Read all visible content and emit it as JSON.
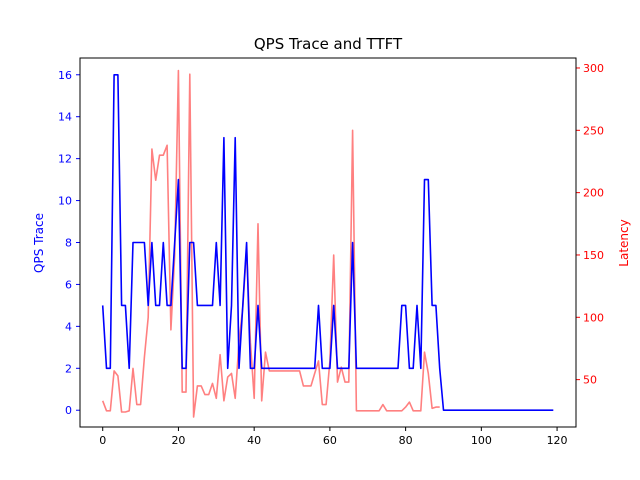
{
  "chart_data": {
    "type": "line",
    "title": "QPS Trace and TTFT",
    "xlabel": "",
    "ylabel": "QPS Trace",
    "y2label": "Latency",
    "xlim": [
      -6,
      125
    ],
    "ylim": [
      -0.8,
      16.8
    ],
    "y2lim": [
      12,
      308
    ],
    "x_ticks": [
      0,
      20,
      40,
      60,
      80,
      100,
      120
    ],
    "y_ticks": [
      0,
      2,
      4,
      6,
      8,
      10,
      12,
      14,
      16
    ],
    "y2_ticks": [
      50,
      100,
      150,
      200,
      250,
      300
    ],
    "grid": false,
    "colors": {
      "left_axis": "#0000ff",
      "right_axis": "#ff0000",
      "axes": "#000000"
    },
    "series": [
      {
        "axis": "left",
        "color": "#0000ff",
        "x": [
          0,
          1,
          2,
          3,
          4,
          5,
          6,
          7,
          8,
          9,
          10,
          11,
          12,
          13,
          14,
          15,
          16,
          17,
          18,
          19,
          20,
          21,
          22,
          23,
          24,
          25,
          26,
          27,
          28,
          29,
          30,
          31,
          32,
          33,
          34,
          35,
          36,
          37,
          38,
          39,
          40,
          41,
          42,
          43,
          44,
          45,
          46,
          47,
          48,
          49,
          50,
          51,
          52,
          53,
          54,
          55,
          56,
          57,
          58,
          59,
          60,
          61,
          62,
          63,
          64,
          65,
          66,
          67,
          68,
          69,
          70,
          71,
          72,
          73,
          74,
          75,
          76,
          77,
          78,
          79,
          80,
          81,
          82,
          83,
          84,
          85,
          86,
          87,
          88,
          89,
          90,
          91,
          119
        ],
        "values": [
          5,
          2,
          2,
          16,
          16,
          5,
          5,
          2,
          8,
          8,
          8,
          8,
          5,
          8,
          5,
          5,
          8,
          5,
          5,
          8,
          11,
          2,
          2,
          8,
          8,
          5,
          5,
          5,
          5,
          5,
          8,
          5,
          13,
          2,
          5,
          13,
          2,
          5,
          8,
          2,
          2,
          5,
          2,
          2,
          2,
          2,
          2,
          2,
          2,
          2,
          2,
          2,
          2,
          2,
          2,
          2,
          2,
          5,
          2,
          2,
          2,
          5,
          2,
          2,
          2,
          2,
          8,
          2,
          2,
          2,
          2,
          2,
          2,
          2,
          2,
          2,
          2,
          2,
          2,
          5,
          5,
          2,
          2,
          5,
          2,
          11,
          11,
          5,
          5,
          2,
          0,
          0,
          0
        ]
      },
      {
        "axis": "right",
        "color": "#ff8080",
        "x": [
          0,
          1,
          2,
          3,
          4,
          5,
          6,
          7,
          8,
          9,
          10,
          11,
          12,
          13,
          14,
          15,
          16,
          17,
          18,
          19,
          20,
          21,
          22,
          23,
          24,
          25,
          26,
          27,
          28,
          29,
          30,
          31,
          32,
          33,
          34,
          35,
          36,
          37,
          38,
          39,
          40,
          41,
          42,
          43,
          44,
          45,
          46,
          47,
          48,
          49,
          50,
          51,
          52,
          53,
          54,
          55,
          56,
          57,
          58,
          59,
          60,
          61,
          62,
          63,
          64,
          65,
          66,
          67,
          68,
          69,
          70,
          71,
          72,
          73,
          74,
          75,
          76,
          77,
          78,
          79,
          80,
          81,
          82,
          83,
          84,
          85,
          86,
          87,
          88,
          89
        ],
        "values": [
          33,
          25,
          25,
          57,
          53,
          24,
          24,
          25,
          59,
          30,
          30,
          68,
          100,
          235,
          210,
          230,
          230,
          238,
          90,
          150,
          298,
          40,
          40,
          295,
          20,
          45,
          45,
          38,
          38,
          47,
          35,
          70,
          33,
          52,
          55,
          35,
          80,
          108,
          155,
          80,
          35,
          175,
          33,
          72,
          57,
          57,
          57,
          57,
          57,
          57,
          57,
          57,
          57,
          45,
          45,
          45,
          55,
          65,
          30,
          30,
          65,
          150,
          48,
          60,
          48,
          48,
          250,
          25,
          25,
          25,
          25,
          25,
          25,
          25,
          30,
          25,
          25,
          25,
          25,
          25,
          28,
          32,
          25,
          25,
          25,
          72,
          55,
          27,
          28,
          28
        ]
      }
    ]
  }
}
